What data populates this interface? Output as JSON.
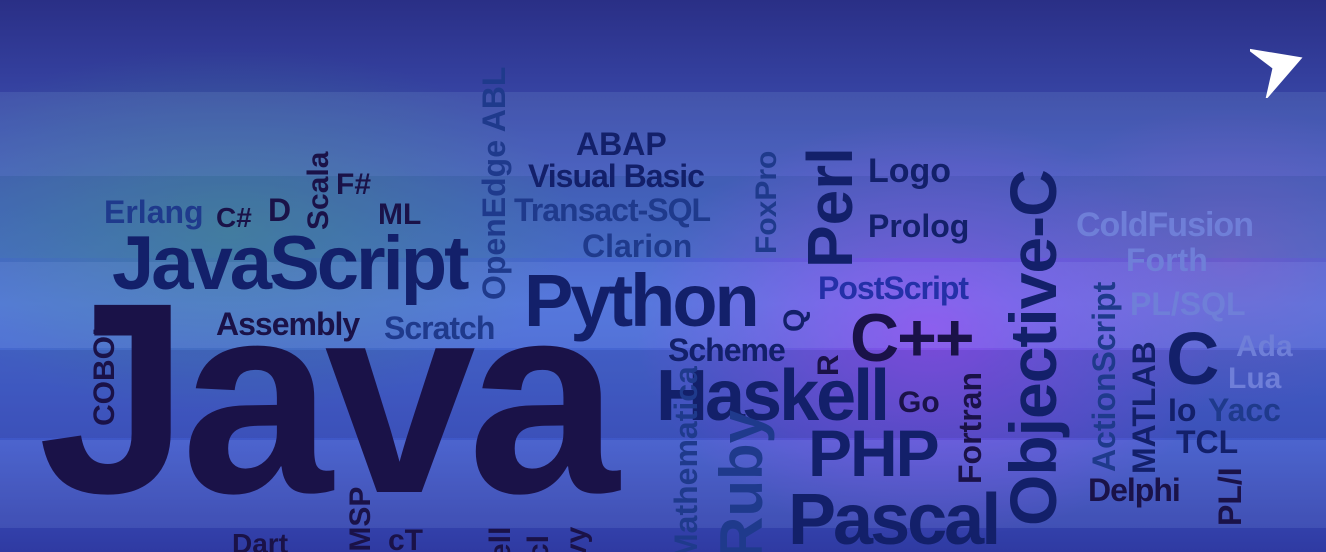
{
  "words": {
    "java": "Java",
    "javascript": "JavaScript",
    "python": "Python",
    "haskell": "Haskell",
    "pascal": "Pascal",
    "php": "PHP",
    "cpp": "C++",
    "perl": "Perl",
    "objective_c": "Objective-C",
    "abap": "ABAP",
    "visual_basic": "Visual Basic",
    "transact_sql": "Transact-SQL",
    "clarion": "Clarion",
    "openedge_abl": "OpenEdge ABL",
    "foxpro": "FoxPro",
    "logo": "Logo",
    "prolog": "Prolog",
    "erlang": "Erlang",
    "csharp": "C#",
    "d": "D",
    "scala": "Scala",
    "fsharp": "F#",
    "ml": "ML",
    "assembly": "Assembly",
    "scratch": "Scratch",
    "cobol": "COBOL",
    "scheme": "Scheme",
    "q": "Q",
    "r": "R",
    "postscript": "PostScript",
    "go": "Go",
    "fortran": "Fortran",
    "coldfusion": "ColdFusion",
    "forth": "Forth",
    "plsql": "PL/SQL",
    "actionscript": "ActionScript",
    "matlab": "MATLAB",
    "c": "C",
    "ada": "Ada",
    "lua": "Lua",
    "io": "Io",
    "yacc": "Yacc",
    "tcl": "TCL",
    "delphi": "Delphi",
    "pl_i": "PL/I",
    "ruby": "Ruby",
    "mathematica": "Mathematica",
    "dart": "Dart",
    "msp": "/MSP",
    "ct": "cT",
    "shell": "ell",
    "tcl2": "cl",
    "vy": "vy"
  },
  "play_icon": "play-arrow-icon",
  "colors": {
    "word_dark": "#1a1248",
    "word_navy": "#13206a",
    "word_pale": "#6f7fd8",
    "accent_purple": "#b83cff"
  }
}
